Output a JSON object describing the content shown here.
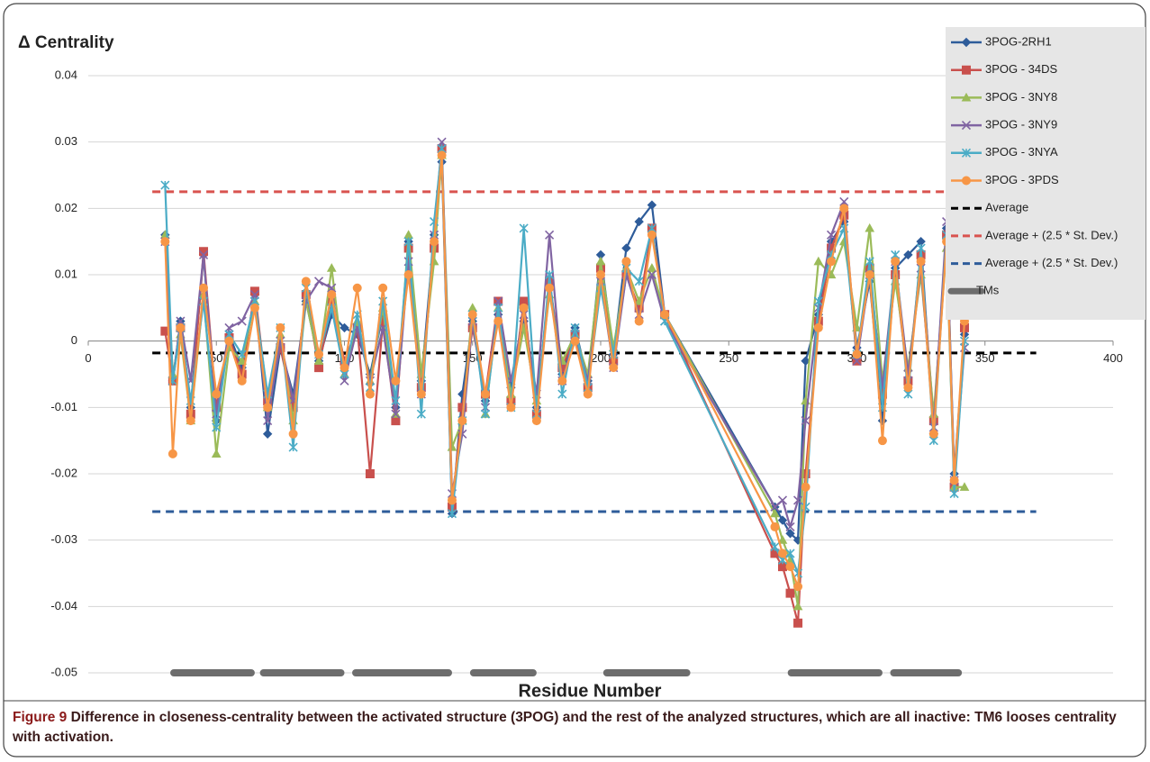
{
  "chart_data": {
    "type": "line",
    "title": "Δ Centrality",
    "x_label": "Residue Number",
    "xlim": [
      0,
      400
    ],
    "xticks": [
      0,
      50,
      100,
      150,
      200,
      250,
      300,
      350,
      400
    ],
    "ylim": [
      -0.05,
      0.04
    ],
    "yticks": [
      -0.05,
      -0.04,
      -0.03,
      -0.02,
      -0.01,
      0,
      0.01,
      0.02,
      0.03,
      0.04
    ],
    "grid": true,
    "x": [
      30,
      33,
      36,
      40,
      45,
      50,
      55,
      60,
      65,
      70,
      75,
      80,
      85,
      90,
      95,
      100,
      105,
      110,
      115,
      120,
      125,
      130,
      135,
      138,
      142,
      146,
      150,
      155,
      160,
      165,
      170,
      175,
      180,
      185,
      190,
      195,
      200,
      205,
      210,
      215,
      220,
      225,
      268,
      271,
      274,
      277,
      280,
      285,
      290,
      295,
      300,
      305,
      310,
      315,
      320,
      325,
      330,
      335,
      338,
      342
    ],
    "series": [
      {
        "name": "3POG-2RH1",
        "color": "#2e5c9a",
        "marker": "diamond",
        "values": [
          0.016,
          -0.006,
          0.003,
          -0.01,
          0.013,
          -0.012,
          0.001,
          -0.004,
          0.007,
          -0.014,
          -0.001,
          -0.008,
          0.006,
          -0.003,
          0.004,
          0.002,
          0.001,
          -0.005,
          0.004,
          -0.01,
          0.015,
          -0.006,
          0.016,
          0.027,
          -0.026,
          -0.008,
          0.003,
          -0.009,
          0.004,
          -0.007,
          0.003,
          -0.01,
          0.009,
          -0.005,
          0.002,
          -0.006,
          0.013,
          -0.002,
          0.014,
          0.018,
          0.0205,
          0.004,
          -0.025,
          -0.027,
          -0.029,
          -0.03,
          -0.003,
          0.004,
          0.015,
          0.018,
          -0.001,
          0.009,
          -0.012,
          0.011,
          0.013,
          0.015,
          -0.014,
          0.017,
          -0.02,
          0.001
        ]
      },
      {
        "name": "3POG - 34DS",
        "color": "#c9504d",
        "marker": "square",
        "values": [
          0.0015,
          -0.006,
          0.002,
          -0.011,
          0.0135,
          -0.01,
          0.0005,
          -0.005,
          0.0075,
          -0.009,
          -0.001,
          -0.01,
          0.007,
          -0.004,
          0.006,
          -0.003,
          0.002,
          -0.02,
          0.003,
          -0.012,
          0.014,
          -0.007,
          0.014,
          0.029,
          -0.025,
          -0.01,
          0.002,
          -0.008,
          0.006,
          -0.009,
          0.006,
          -0.011,
          0.009,
          -0.004,
          0.001,
          -0.007,
          0.011,
          -0.003,
          0.01,
          0.005,
          0.017,
          0.004,
          -0.032,
          -0.034,
          -0.038,
          -0.0425,
          -0.02,
          0.003,
          0.014,
          0.019,
          -0.003,
          0.011,
          -0.008,
          0.01,
          -0.006,
          0.013,
          -0.012,
          0.016,
          -0.022,
          0.002
        ]
      },
      {
        "name": "3POG - 3NY8",
        "color": "#9bbb59",
        "marker": "triangle",
        "values": [
          0.016,
          -0.005,
          0.001,
          -0.012,
          0.007,
          -0.017,
          -0.001,
          -0.003,
          0.006,
          -0.01,
          0.001,
          -0.012,
          0.006,
          -0.003,
          0.011,
          -0.005,
          0.003,
          -0.006,
          0.005,
          -0.011,
          0.016,
          -0.005,
          0.012,
          0.028,
          -0.016,
          -0.012,
          0.005,
          -0.011,
          0.005,
          -0.008,
          0.002,
          -0.009,
          0.007,
          -0.003,
          0.001,
          -0.005,
          0.012,
          -0.001,
          0.011,
          0.006,
          0.011,
          0.004,
          -0.026,
          -0.03,
          -0.033,
          -0.04,
          -0.009,
          0.012,
          0.01,
          0.015,
          0.002,
          0.017,
          -0.006,
          0.009,
          -0.004,
          0.01,
          -0.011,
          0.014,
          -0.022,
          -0.022
        ]
      },
      {
        "name": "3POG - 3NY9",
        "color": "#8064a2",
        "marker": "x",
        "values": [
          0.015,
          -0.006,
          0.003,
          -0.006,
          0.013,
          -0.011,
          0.002,
          0.003,
          0.007,
          -0.012,
          0,
          -0.009,
          0.006,
          0.009,
          0.008,
          -0.006,
          0.002,
          -0.006,
          0.002,
          -0.011,
          0.012,
          -0.008,
          0.016,
          0.03,
          -0.023,
          -0.014,
          0.003,
          -0.01,
          0.006,
          -0.006,
          0.004,
          -0.008,
          0.016,
          -0.006,
          0.001,
          -0.006,
          0.009,
          -0.004,
          0.01,
          0.004,
          0.01,
          0.003,
          -0.025,
          -0.024,
          -0.028,
          -0.024,
          -0.012,
          0.005,
          0.016,
          0.021,
          -0.003,
          0.01,
          -0.007,
          0.012,
          -0.005,
          0.011,
          -0.013,
          0.018,
          -0.021,
          -0.001
        ]
      },
      {
        "name": "3POG - 3NYA",
        "color": "#4bacc6",
        "marker": "star",
        "values": [
          0.0235,
          -0.006,
          0.002,
          -0.009,
          0.006,
          -0.013,
          0.001,
          -0.002,
          0.006,
          -0.008,
          0.002,
          -0.016,
          0.008,
          -0.002,
          0.005,
          -0.005,
          0.004,
          -0.007,
          0.006,
          -0.009,
          0.015,
          -0.011,
          0.018,
          0.029,
          -0.026,
          -0.012,
          0.004,
          -0.011,
          0.005,
          -0.01,
          0.017,
          -0.011,
          0.01,
          -0.008,
          0.002,
          -0.007,
          0.008,
          -0.002,
          0.011,
          0.009,
          0.017,
          0.003,
          -0.031,
          -0.033,
          -0.032,
          -0.035,
          -0.025,
          0.006,
          0.013,
          0.017,
          -0.002,
          0.012,
          -0.01,
          0.013,
          -0.008,
          0.014,
          -0.015,
          0.016,
          -0.023,
          0
        ]
      },
      {
        "name": "3POG - 3PDS",
        "color": "#f79646",
        "marker": "circle",
        "values": [
          0.015,
          -0.017,
          0.002,
          -0.012,
          0.008,
          -0.008,
          0,
          -0.006,
          0.005,
          -0.01,
          0.002,
          -0.014,
          0.009,
          -0.002,
          0.007,
          -0.004,
          0.008,
          -0.008,
          0.008,
          -0.006,
          0.01,
          -0.008,
          0.015,
          0.028,
          -0.024,
          -0.012,
          0.004,
          -0.008,
          0.003,
          -0.01,
          0.005,
          -0.012,
          0.008,
          -0.006,
          0,
          -0.008,
          0.01,
          -0.004,
          0.012,
          0.003,
          0.016,
          0.004,
          -0.028,
          -0.032,
          -0.034,
          -0.037,
          -0.022,
          0.002,
          0.012,
          0.02,
          -0.002,
          0.01,
          -0.015,
          0.012,
          -0.007,
          0.012,
          -0.014,
          0.015,
          -0.021,
          0.003
        ]
      }
    ],
    "reference_lines": [
      {
        "name": "Average",
        "color": "#000000",
        "value": -0.0018,
        "xlim": [
          25,
          370
        ]
      },
      {
        "name": "Average + (2.5 * St. Dev.)",
        "color": "#d9534f",
        "value": 0.0225,
        "xlim": [
          25,
          370
        ]
      },
      {
        "name": "Average + (2.5 * St. Dev.)",
        "color": "#2e5c9a",
        "value": -0.0257,
        "xlim": [
          25,
          370
        ]
      }
    ],
    "tms": {
      "name": "TMs",
      "color": "#6d6d6d",
      "segments": [
        [
          32,
          65
        ],
        [
          67,
          100
        ],
        [
          103,
          142
        ],
        [
          149,
          175
        ],
        [
          201,
          235
        ],
        [
          273,
          310
        ],
        [
          313,
          341
        ]
      ]
    },
    "legend": "top-right"
  },
  "caption": {
    "label": "Figure 9",
    "text": "Difference in closeness-centrality between the activated structure (3POG) and the rest of the analyzed structures, which are all inactive: TM6 looses centrality with activation."
  }
}
